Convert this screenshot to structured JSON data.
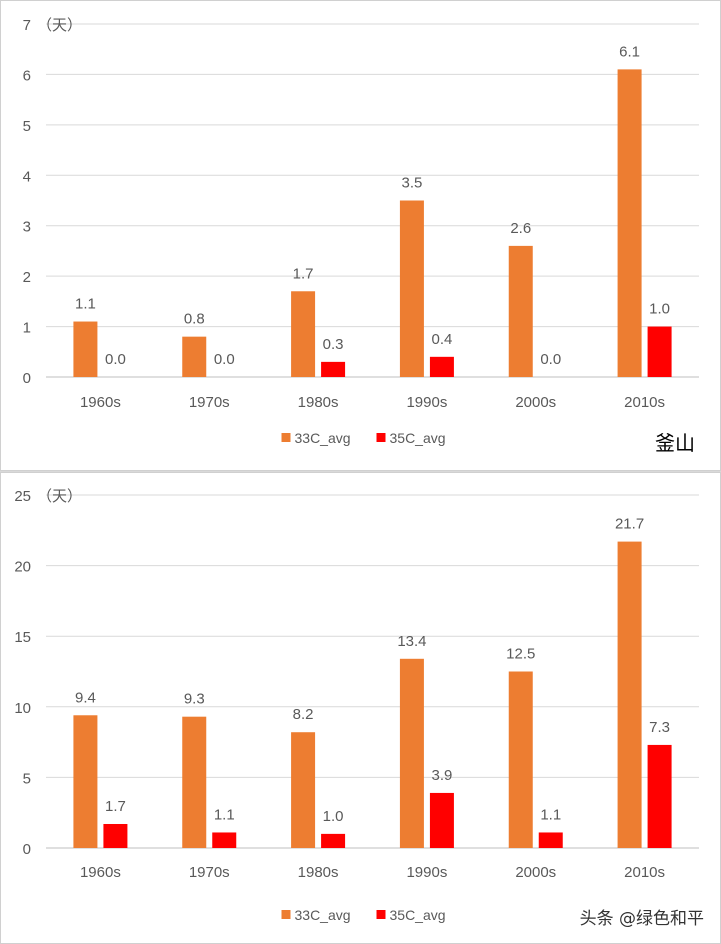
{
  "colors": {
    "series_33": "#ed7d31",
    "series_35": "#ff0000",
    "grid": "#d9d9d9",
    "axis": "#bfbfbf",
    "text": "#595959"
  },
  "chart_data": [
    {
      "type": "bar",
      "region_label": "釜山",
      "unit_label": "（天）",
      "categories": [
        "1960s",
        "1970s",
        "1980s",
        "1990s",
        "2000s",
        "2010s"
      ],
      "series": [
        {
          "name": "33C_avg",
          "values": [
            1.1,
            0.8,
            1.7,
            3.5,
            2.6,
            6.1
          ]
        },
        {
          "name": "35C_avg",
          "values": [
            0.0,
            0.0,
            0.3,
            0.4,
            0.0,
            1.0
          ]
        }
      ],
      "ylim": [
        0,
        7
      ],
      "yticks": [
        0,
        1,
        2,
        3,
        4,
        5,
        6,
        7
      ],
      "grid": true,
      "legend": "bottom-center"
    },
    {
      "type": "bar",
      "region_label": "",
      "unit_label": "（天）",
      "categories": [
        "1960s",
        "1970s",
        "1980s",
        "1990s",
        "2000s",
        "2010s"
      ],
      "series": [
        {
          "name": "33C_avg",
          "values": [
            9.4,
            9.3,
            8.2,
            13.4,
            12.5,
            21.7
          ]
        },
        {
          "name": "35C_avg",
          "values": [
            1.7,
            1.1,
            1.0,
            3.9,
            1.1,
            7.3
          ]
        }
      ],
      "ylim": [
        0,
        25
      ],
      "yticks": [
        0,
        5,
        10,
        15,
        20,
        25
      ],
      "grid": true,
      "legend": "bottom-center"
    }
  ],
  "watermark": "头条 @绿色和平"
}
